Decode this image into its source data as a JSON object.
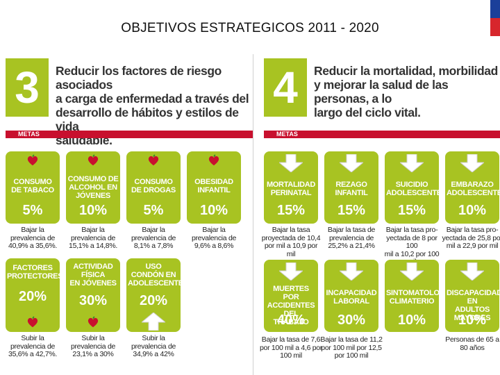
{
  "title": "OBJETIVOS ESTRATEGICOS 2011 - 2020",
  "colors": {
    "green": "#a8c322",
    "red": "#c8102e",
    "flag_blue": "#1b3f9a",
    "flag_red": "#d7262c"
  },
  "obj3": {
    "number": "3",
    "lines": [
      "Reducir los factores de riesgo asociados",
      "a carga de enfermedad a través del",
      "desarrollo de hábitos y estilos de vida",
      "saludable."
    ],
    "metas_label": "METAS",
    "cards": [
      {
        "label": [
          "CONSUMO",
          "DE TABACO"
        ],
        "pct": "5%",
        "desc": [
          "Bajar la",
          "prevalencia de",
          "40,9% a 35,6%."
        ]
      },
      {
        "label": [
          "CONSUMO DE",
          "ALCOHOL EN",
          "JÓVENES"
        ],
        "pct": "10%",
        "desc": [
          "Bajar la",
          "prevalencia de",
          "15,1% a 14,8%."
        ]
      },
      {
        "label": [
          "CONSUMO",
          "DE DROGAS"
        ],
        "pct": "5%",
        "desc": [
          "Bajar la",
          "prevalencia de",
          "8,1% a 7,8%"
        ]
      },
      {
        "label": [
          "OBESIDAD",
          "INFANTIL"
        ],
        "pct": "10%",
        "desc": [
          "Bajar la",
          "prevalencia de",
          "9,6% a 8,6%"
        ]
      },
      {
        "label": [
          "FACTORES",
          "PROTECTORES"
        ],
        "pct": "20%",
        "desc": [
          "Subir la",
          "prevalencia de",
          "35,6% a 42,7%."
        ]
      },
      {
        "label": [
          "ACTIVIDAD",
          "FÍSICA",
          "EN JÓVENES"
        ],
        "pct": "30%",
        "desc": [
          "Subir la",
          "prevalencia de",
          "23,1% a 30%"
        ]
      },
      {
        "label": [
          "USO",
          "CONDÓN EN",
          "ADOLESCENTES"
        ],
        "pct": "20%",
        "desc": [
          "Subir la",
          "prevalencia de",
          "34,9% a 42%"
        ]
      }
    ]
  },
  "obj4": {
    "number": "4",
    "lines": [
      "Reducir la mortalidad, morbilidad",
      "y mejorar la salud de las personas, a lo",
      "largo del ciclo vital."
    ],
    "metas_label": "METAS",
    "cards": [
      {
        "label": [
          "MORTALIDAD",
          "PERINATAL"
        ],
        "pct": "15%",
        "desc": [
          "Bajar la tasa",
          "proyectada de 10,4",
          "por mil a 10,9 por mil"
        ]
      },
      {
        "label": [
          "REZAGO",
          "INFANTIL"
        ],
        "pct": "15%",
        "desc": [
          "Bajar la tasa de",
          "prevalencia de",
          "25,2% a 21,4%"
        ]
      },
      {
        "label": [
          "SUICIDIO",
          "ADOLESCENTE"
        ],
        "pct": "15%",
        "desc": [
          "Bajar la tasa pro-",
          "yectada de 8 por 100",
          "mil a 10,2 por 100 mil"
        ]
      },
      {
        "label": [
          "EMBARAZO",
          "ADOLESCENTE"
        ],
        "pct": "10%",
        "desc": [
          "Bajar la tasa pro-",
          "yectada de 25,8 por",
          "mil a 22,9 por mil"
        ]
      },
      {
        "label": [
          "MUERTES POR",
          "ACCIDENTES DEL",
          "TRABAJO"
        ],
        "pct": "40%",
        "desc": [
          "Bajar la tasa de 7,6",
          "por 100 mil a 4,6 por",
          "100 mil"
        ]
      },
      {
        "label": [
          "INCAPACIDAD",
          "LABORAL"
        ],
        "pct": "30%",
        "desc": [
          "Bajar la tasa de 11,2",
          "por 100 mil por 12,5",
          "por 100 mil"
        ]
      },
      {
        "label": [
          "SINTOMATOLOGÍA",
          "CLIMATERIO"
        ],
        "pct": "10%",
        "desc": []
      },
      {
        "label": [
          "DISCAPACIDAD EN",
          "ADULTOS MAYORES"
        ],
        "pct": "10%",
        "desc": [
          "Personas de 65 a",
          "80 años"
        ]
      }
    ]
  }
}
